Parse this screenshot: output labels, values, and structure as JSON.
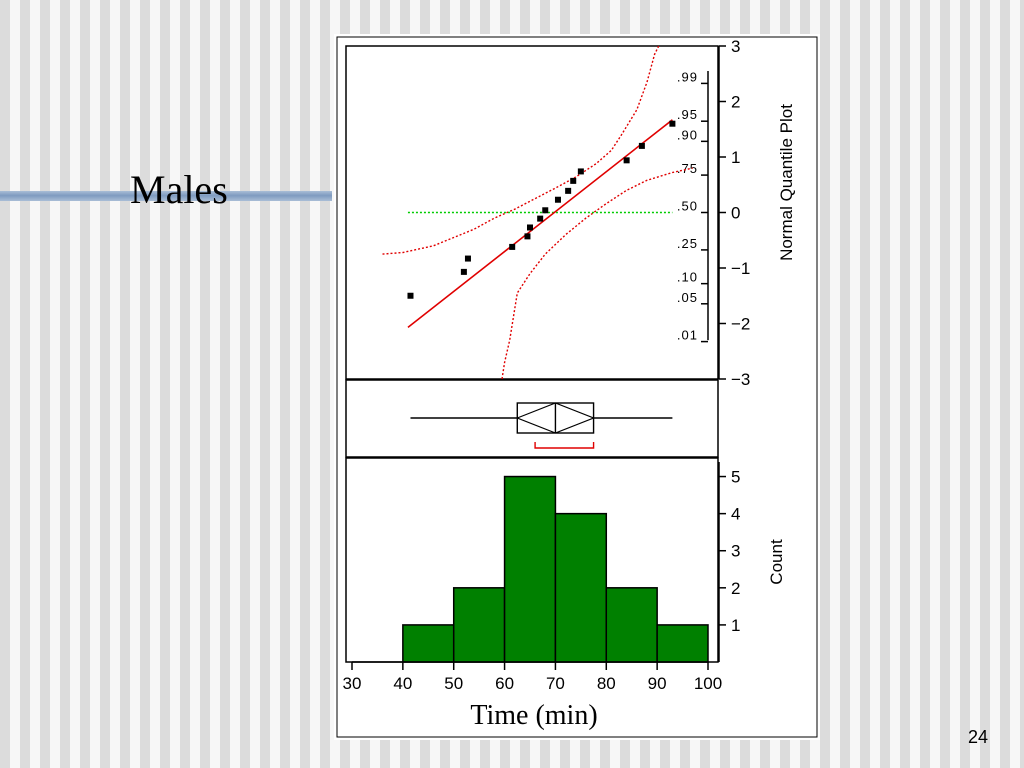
{
  "slide": {
    "heading": "Males",
    "page_number": "24"
  },
  "colors": {
    "bar_fill": "#008000",
    "fit_line": "#e00000",
    "band_line": "#e00000",
    "median_line": "#00cc00",
    "point": "#000000",
    "accent_bar": "#7f9bc0"
  },
  "chart_data": [
    {
      "type": "scatter",
      "subtype": "normal-quantile-plot",
      "ylabel": "Normal Quantile Plot",
      "xlim": [
        30,
        100
      ],
      "ylim": [
        -3,
        3
      ],
      "y_ticks": [
        3,
        2,
        1,
        0,
        -1,
        -2,
        -3
      ],
      "probability_ticks": [
        {
          "label": ".99",
          "z": 2.326
        },
        {
          "label": ".95",
          "z": 1.645
        },
        {
          "label": ".90",
          "z": 1.282
        },
        {
          "label": ".75",
          "z": 0.674
        },
        {
          "label": ".50",
          "z": 0
        },
        {
          "label": ".25",
          "z": -0.674
        },
        {
          "label": ".10",
          "z": -1.282
        },
        {
          "label": ".05",
          "z": -1.645
        },
        {
          "label": ".01",
          "z": -2.326
        }
      ],
      "points": {
        "x": [
          41.5,
          52,
          52.8,
          61.5,
          64.5,
          65,
          67,
          68,
          70.5,
          72.5,
          73.5,
          75,
          84,
          87,
          93
        ],
        "y": [
          -1.5,
          -1.07,
          -0.83,
          -0.62,
          -0.43,
          -0.27,
          -0.11,
          0.04,
          0.23,
          0.39,
          0.57,
          0.74,
          0.94,
          1.2,
          1.6
        ]
      },
      "fit_line": {
        "x": [
          41,
          93
        ],
        "y": [
          -2.07,
          1.67
        ]
      },
      "median_reference_y": 0,
      "confidence_band_upper": {
        "x": [
          36,
          40,
          46,
          54,
          58,
          62,
          66,
          70,
          74,
          78,
          81,
          83,
          86,
          88,
          89.5,
          90.3
        ],
        "y": [
          -0.75,
          -0.72,
          -0.6,
          -0.3,
          -0.1,
          0.06,
          0.25,
          0.44,
          0.64,
          0.88,
          1.12,
          1.4,
          1.85,
          2.35,
          2.85,
          3.0
        ]
      },
      "confidence_band_lower": {
        "x": [
          59.5,
          60,
          61,
          62.5,
          65,
          68,
          72,
          76,
          80,
          84,
          88,
          93,
          97
        ],
        "y": [
          -3.0,
          -2.7,
          -2.3,
          -1.45,
          -1.1,
          -0.75,
          -0.4,
          -0.1,
          0.16,
          0.4,
          0.58,
          0.72,
          0.8
        ]
      }
    },
    {
      "type": "boxplot",
      "xlim": [
        30,
        100
      ],
      "whisker_low": 41.5,
      "q1": 62.5,
      "median": 70,
      "q3": 77.5,
      "whisker_high": 93,
      "mean_diamond": [
        62.5,
        77.5
      ],
      "shortest_half": [
        66,
        77.5
      ]
    },
    {
      "type": "bar",
      "subtype": "histogram",
      "bins": [
        [
          40,
          50
        ],
        [
          50,
          60
        ],
        [
          60,
          70
        ],
        [
          70,
          80
        ],
        [
          80,
          90
        ],
        [
          90,
          100
        ]
      ],
      "values": [
        1,
        2,
        5,
        4,
        2,
        1
      ],
      "x_ticks": [
        "30",
        "40",
        "50",
        "60",
        "70",
        "80",
        "90",
        "100"
      ],
      "y_ticks": [
        "1",
        "2",
        "3",
        "4",
        "5"
      ],
      "xlabel": "Time (min)",
      "ylabel": "Count",
      "xlim": [
        30,
        100
      ],
      "ylim": [
        0,
        5.5
      ]
    }
  ]
}
